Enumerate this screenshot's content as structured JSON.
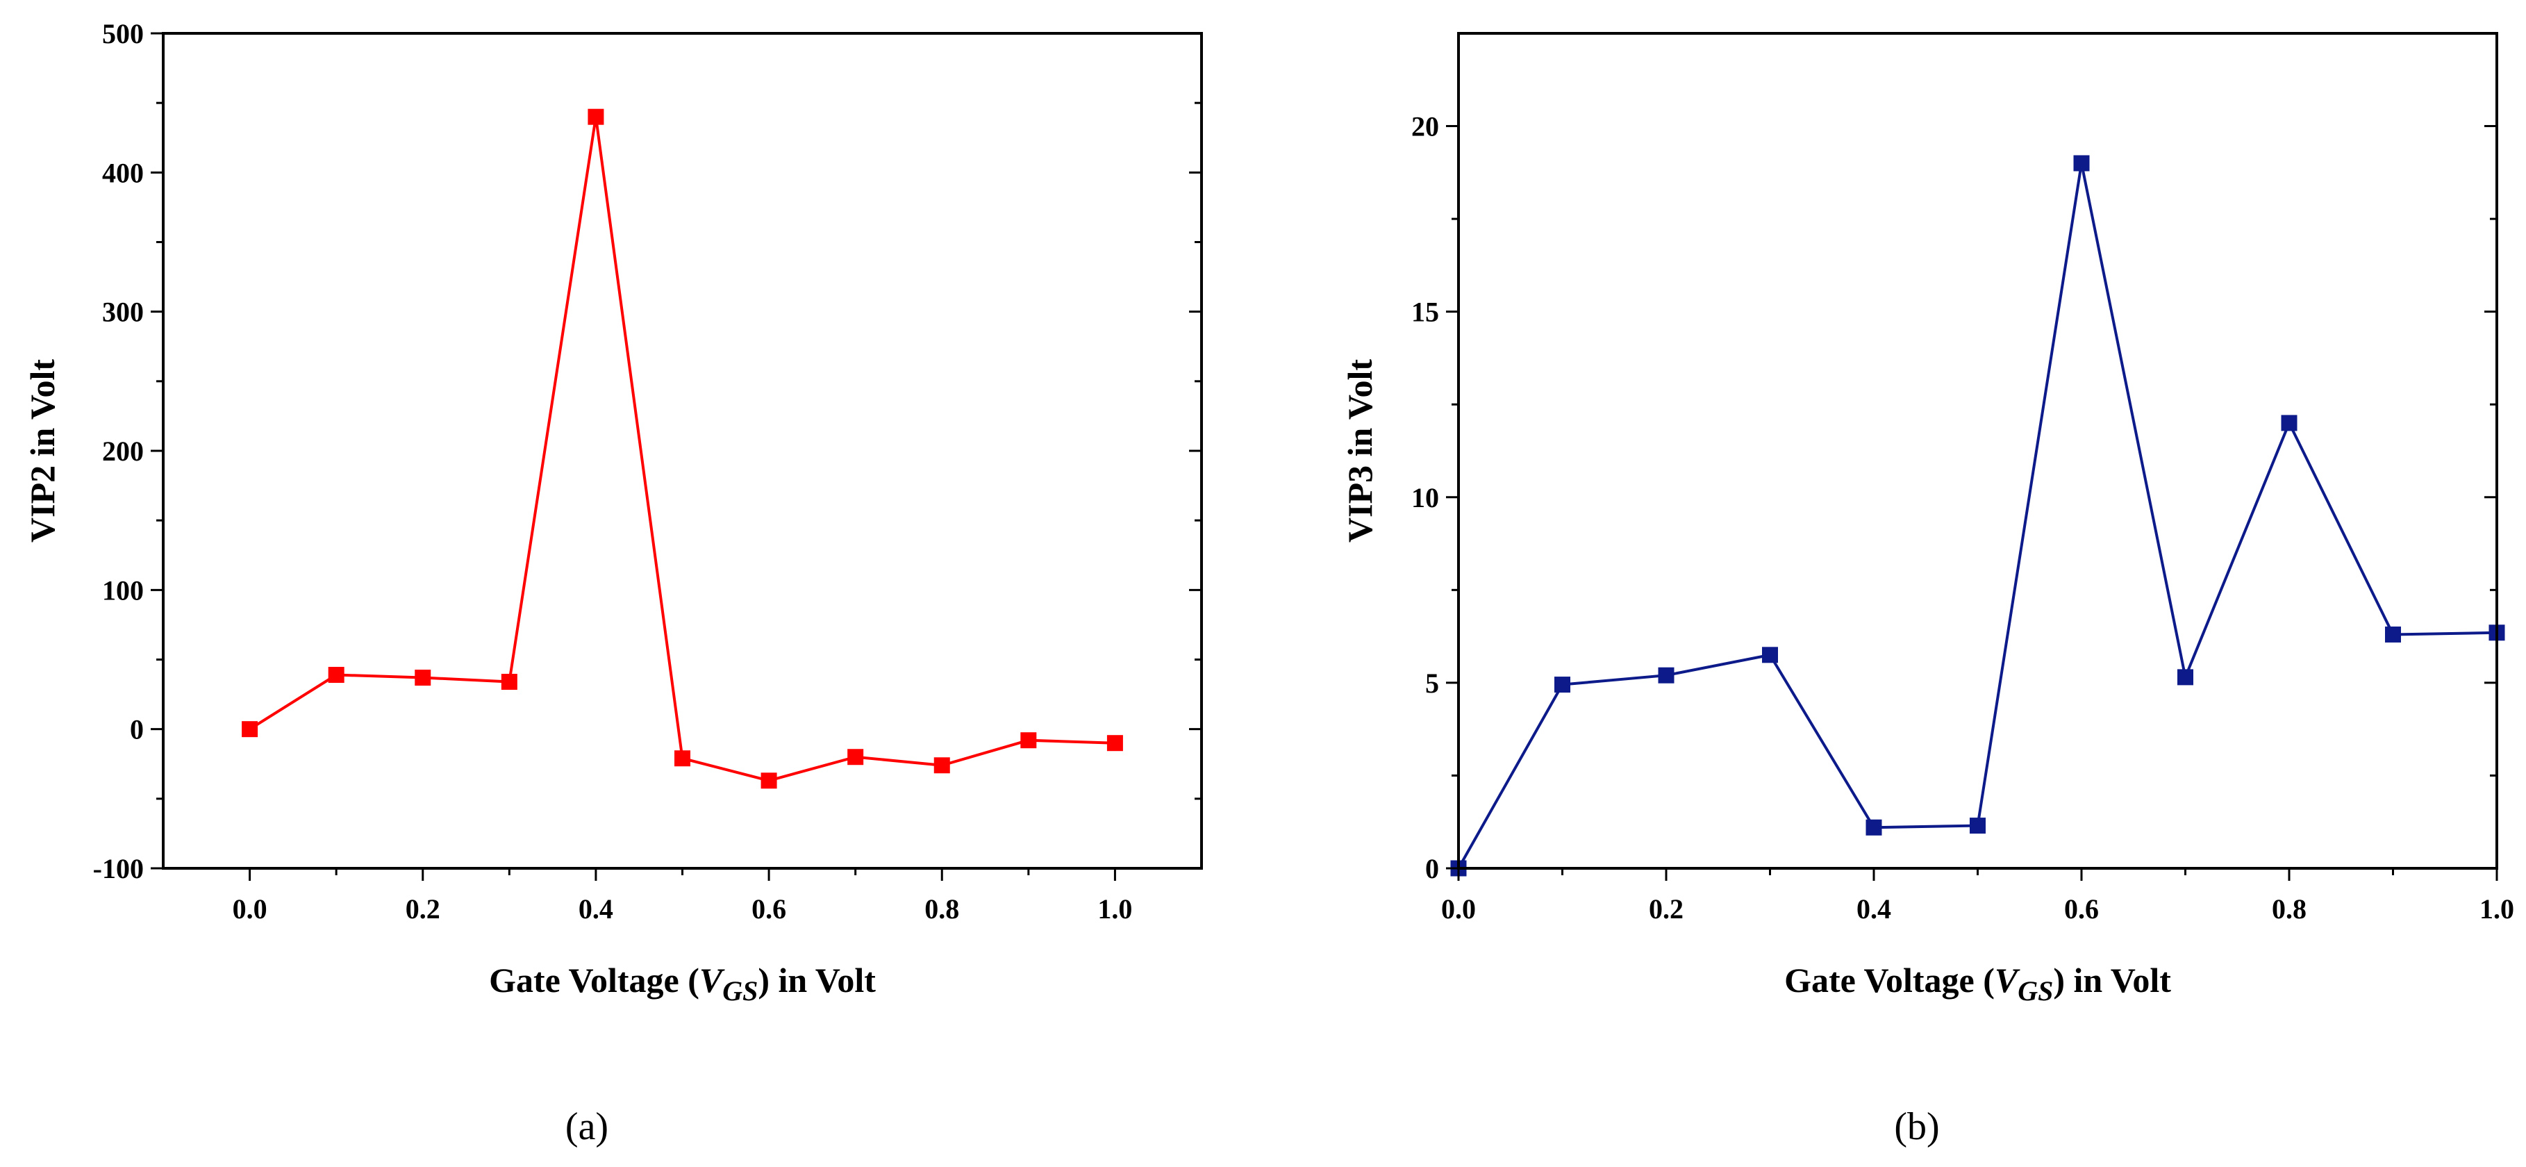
{
  "chart_data": [
    {
      "type": "line",
      "panel_label": "(a)",
      "title": "",
      "xlabel_prefix": "Gate Voltage (",
      "xlabel_var": "V",
      "xlabel_sub": "GS",
      "xlabel_suffix": ") in Volt",
      "ylabel": "VIP2 in Volt",
      "xlim": [
        -0.1,
        1.1
      ],
      "ylim": [
        -100,
        500
      ],
      "xticks": [
        0.0,
        0.2,
        0.4,
        0.6,
        0.8,
        1.0
      ],
      "xtick_labels": [
        "0.0",
        "0.2",
        "0.4",
        "0.6",
        "0.8",
        "1.0"
      ],
      "yticks": [
        -100,
        0,
        100,
        200,
        300,
        400,
        500
      ],
      "ytick_labels": [
        "-100",
        "0",
        "100",
        "200",
        "300",
        "400",
        "500"
      ],
      "color": "#ff0000",
      "series": [
        {
          "name": "VIP2",
          "x": [
            0.0,
            0.1,
            0.2,
            0.3,
            0.4,
            0.5,
            0.6,
            0.7,
            0.8,
            0.9,
            1.0
          ],
          "values": [
            0,
            39,
            37,
            34,
            440,
            -21,
            -37,
            -20,
            -26,
            -8,
            -10
          ]
        }
      ]
    },
    {
      "type": "line",
      "panel_label": "(b)",
      "title": "",
      "xlabel_prefix": "Gate Voltage (",
      "xlabel_var": "V",
      "xlabel_sub": "GS",
      "xlabel_suffix": ") in Volt",
      "ylabel": "VIP3 in Volt",
      "xlim": [
        0.0,
        1.0
      ],
      "ylim": [
        0,
        22.5
      ],
      "xticks": [
        0.0,
        0.2,
        0.4,
        0.6,
        0.8,
        1.0
      ],
      "xtick_labels": [
        "0.0",
        "0.2",
        "0.4",
        "0.6",
        "0.8",
        "1.0"
      ],
      "yticks": [
        0,
        5,
        10,
        15,
        20
      ],
      "ytick_labels": [
        "0",
        "5",
        "10",
        "15",
        "20"
      ],
      "color": "#0c1a8a",
      "series": [
        {
          "name": "VIP3",
          "x": [
            0.0,
            0.1,
            0.2,
            0.3,
            0.4,
            0.5,
            0.6,
            0.7,
            0.8,
            0.9,
            1.0
          ],
          "values": [
            0,
            4.95,
            5.2,
            5.75,
            1.1,
            1.15,
            19.0,
            5.15,
            12.0,
            6.3,
            6.35
          ]
        }
      ]
    }
  ]
}
